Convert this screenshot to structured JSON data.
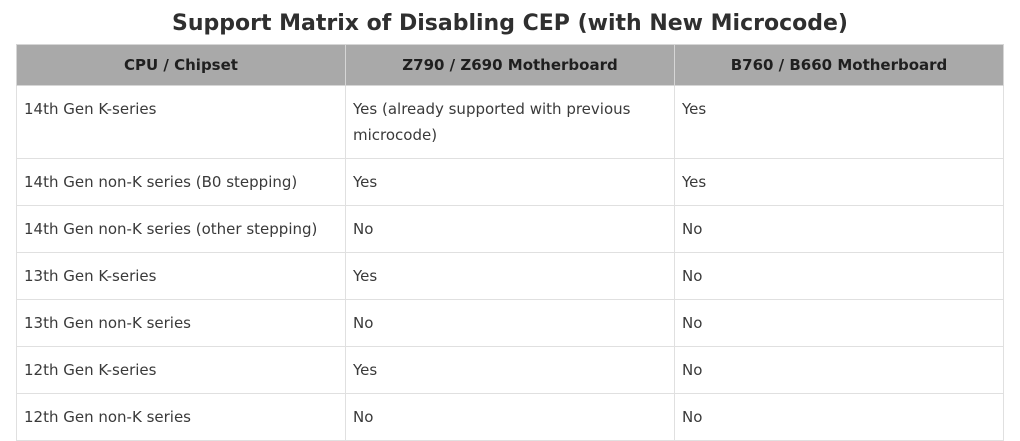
{
  "title": "Support Matrix of Disabling CEP (with New Microcode)",
  "table": {
    "headers": [
      "CPU / Chipset",
      "Z790 / Z690 Motherboard",
      "B760 / B660 Motherboard"
    ],
    "rows": [
      [
        "14th Gen K-series",
        "Yes (already supported with previous microcode)",
        "Yes"
      ],
      [
        "14th Gen non-K series (B0 stepping)",
        "Yes",
        "Yes"
      ],
      [
        "14th Gen non-K series (other stepping)",
        "No",
        "No"
      ],
      [
        "13th Gen K-series",
        "Yes",
        "No"
      ],
      [
        "13th Gen non-K series",
        "No",
        "No"
      ],
      [
        "12th Gen K-series",
        "Yes",
        "No"
      ],
      [
        "12th Gen non-K series",
        "No",
        "No"
      ]
    ]
  },
  "colors": {
    "header_bg": "#a9a9a9",
    "border": "#e0e0e0",
    "text": "#3a3a3a"
  }
}
